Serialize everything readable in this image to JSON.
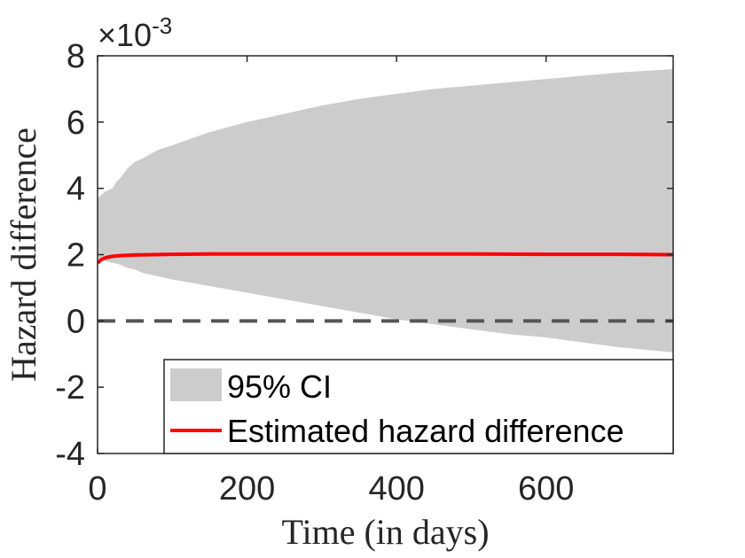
{
  "chart_data": {
    "type": "area",
    "title": "",
    "xlabel": "Time (in days)",
    "ylabel": "Hazard difference",
    "y_exponent_label": {
      "base": "×10",
      "power": "-3"
    },
    "xlim": [
      0,
      770
    ],
    "ylim": [
      -4,
      8
    ],
    "xticks": [
      0,
      200,
      400,
      600
    ],
    "yticks": [
      -4,
      -2,
      0,
      2,
      4,
      6,
      8
    ],
    "xtick_labels": [
      "0",
      "200",
      "400",
      "600"
    ],
    "ytick_labels": [
      "-4",
      "-2",
      "0",
      "2",
      "4",
      "6",
      "8"
    ],
    "grid": false,
    "legend_position": "bottom-right",
    "series": [
      {
        "name": "95% CI",
        "kind": "band",
        "color": "#cccccc",
        "x": [
          0,
          5,
          10,
          15,
          20,
          25,
          30,
          40,
          50,
          60,
          80,
          100,
          125,
          150,
          200,
          250,
          300,
          350,
          400,
          450,
          500,
          550,
          600,
          650,
          700,
          770
        ],
        "upper": [
          3.7,
          3.8,
          3.9,
          3.95,
          4.0,
          4.2,
          4.3,
          4.6,
          4.8,
          4.9,
          5.15,
          5.3,
          5.5,
          5.7,
          6.0,
          6.25,
          6.5,
          6.7,
          6.85,
          7.0,
          7.1,
          7.2,
          7.3,
          7.4,
          7.5,
          7.6
        ],
        "lower": [
          1.9,
          1.85,
          1.8,
          1.78,
          1.75,
          1.73,
          1.7,
          1.6,
          1.55,
          1.45,
          1.35,
          1.25,
          1.15,
          1.05,
          0.85,
          0.65,
          0.45,
          0.25,
          0.05,
          -0.1,
          -0.25,
          -0.4,
          -0.5,
          -0.65,
          -0.8,
          -0.95
        ]
      },
      {
        "name": "Estimated hazard difference",
        "kind": "line",
        "color": "#ff0000",
        "x": [
          0,
          5,
          10,
          15,
          20,
          30,
          50,
          75,
          100,
          150,
          200,
          300,
          400,
          500,
          600,
          700,
          770
        ],
        "values": [
          1.75,
          1.85,
          1.9,
          1.93,
          1.95,
          1.97,
          1.99,
          2.0,
          2.01,
          2.02,
          2.02,
          2.02,
          2.02,
          2.02,
          2.01,
          2.01,
          2.0
        ]
      }
    ],
    "reference_line": {
      "y": 0,
      "style": "dashed",
      "color": "#555555"
    },
    "legend": [
      "95% CI",
      "Estimated hazard difference"
    ]
  }
}
